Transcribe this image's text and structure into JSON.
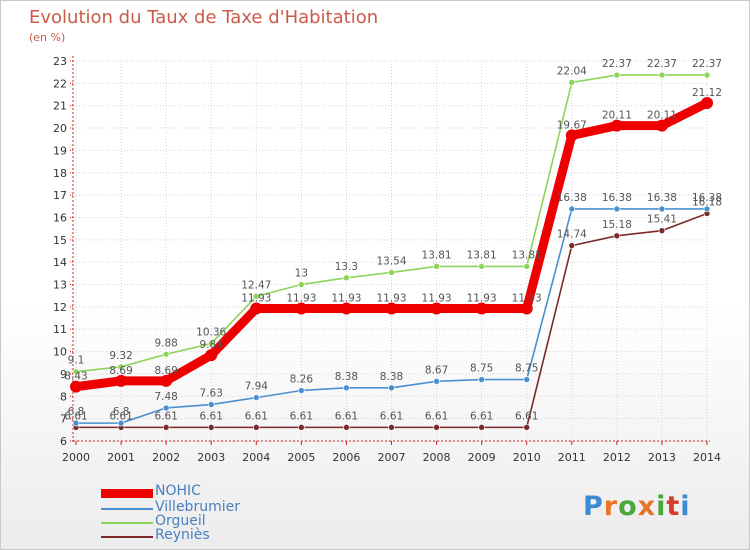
{
  "header": {
    "title": "Evolution du Taux de Taxe d'Habitation",
    "unit": "(en %)"
  },
  "logo": {
    "letters": [
      "P",
      "r",
      "o",
      "x",
      "i",
      "t",
      "i"
    ],
    "colors": [
      "#3a8ad4",
      "#e8742a",
      "#4aa83a",
      "#e8742a",
      "#4aa83a",
      "#d63a2a",
      "#3a8ad4"
    ]
  },
  "chart_data": {
    "type": "line",
    "title": "Evolution du Taux de Taxe d'Habitation",
    "ylabel": "(en %)",
    "xlabel": "",
    "ylim": [
      6,
      23
    ],
    "yticks": [
      6,
      7,
      8,
      9,
      10,
      11,
      12,
      13,
      14,
      15,
      16,
      17,
      18,
      19,
      20,
      21,
      22,
      23
    ],
    "categories": [
      "2000",
      "2001",
      "2002",
      "2003",
      "2004",
      "2005",
      "2006",
      "2007",
      "2008",
      "2009",
      "2010",
      "2011",
      "2012",
      "2013",
      "2014"
    ],
    "grid": true,
    "legend_position": "bottom-left",
    "series": [
      {
        "name": "Reyniès",
        "color": "#7a2a2a",
        "values": [
          6.61,
          6.61,
          6.61,
          6.61,
          6.61,
          6.61,
          6.61,
          6.61,
          6.61,
          6.61,
          6.61,
          14.74,
          15.18,
          15.41,
          16.18
        ],
        "labels": [
          "6.61",
          "6.61",
          "6.61",
          "6.61",
          "6.61",
          "6.61",
          "6.61",
          "6.61",
          "6.61",
          "6.61",
          "6.61",
          "14.74",
          "15.18",
          "15.41",
          "16.18"
        ]
      },
      {
        "name": "Villebrumier",
        "color": "#4a90d0",
        "values": [
          6.8,
          6.8,
          7.48,
          7.63,
          7.94,
          8.26,
          8.38,
          8.38,
          8.67,
          8.75,
          8.75,
          16.38,
          16.38,
          16.38,
          16.38
        ],
        "labels": [
          "6.8",
          "6.8",
          "7.48",
          "7.63",
          "7.94",
          "8.26",
          "8.38",
          "8.38",
          "8.67",
          "8.75",
          "8.75",
          "16.38",
          "16.38",
          "16.38",
          "16.38"
        ]
      },
      {
        "name": "Orgueil",
        "color": "#8ed45a",
        "values": [
          9.1,
          9.32,
          9.88,
          10.36,
          12.47,
          13,
          13.3,
          13.54,
          13.81,
          13.81,
          13.81,
          22.04,
          22.37,
          22.37,
          22.37
        ],
        "labels": [
          "9.1",
          "9.32",
          "9.88",
          "10.36",
          "12.47",
          "13",
          "13.3",
          "13.54",
          "13.81",
          "13.81",
          "13.81",
          "22.04",
          "22.37",
          "22.37",
          "22.37"
        ]
      },
      {
        "name": "NOHIC",
        "color": "#ee0000",
        "values": [
          8.43,
          8.69,
          8.69,
          9.84,
          11.93,
          11.93,
          11.93,
          11.93,
          11.93,
          11.93,
          11.93,
          19.67,
          20.11,
          20.11,
          21.12
        ],
        "labels": [
          "8.43",
          "8.69",
          "8.69",
          "9.84",
          "11.93",
          "11.93",
          "11.93",
          "11.93",
          "11.93",
          "11.93",
          "11.93",
          "19.67",
          "20.11",
          "20.11",
          "21.12"
        ]
      }
    ],
    "legend_order": [
      "NOHIC",
      "Villebrumier",
      "Orgueil",
      "Reyniès"
    ]
  }
}
